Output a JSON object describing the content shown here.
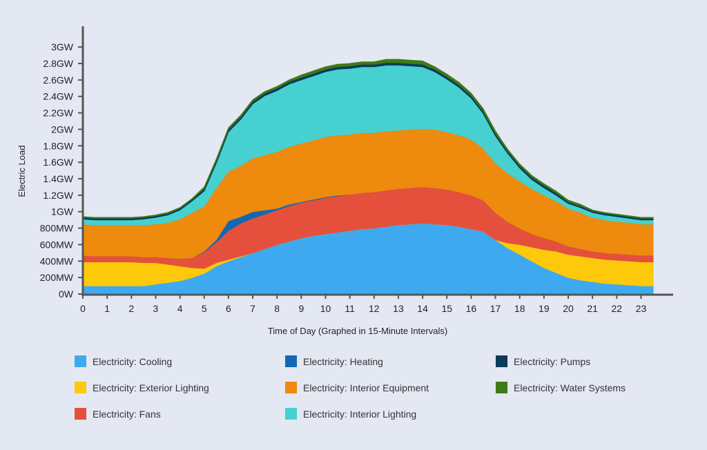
{
  "colors": {
    "background": "#e3e8f2",
    "axis": "#555555"
  },
  "chart_data": {
    "type": "area",
    "stacked": true,
    "title": "",
    "xlabel": "Time of Day (Graphed in 15-Minute Intervals)",
    "ylabel": "Electric Load",
    "x": [
      0,
      0.5,
      1,
      1.5,
      2,
      2.5,
      3,
      3.5,
      4,
      4.5,
      5,
      5.5,
      6,
      6.5,
      7,
      7.5,
      8,
      8.5,
      9,
      9.5,
      10,
      10.5,
      11,
      11.5,
      12,
      12.5,
      13,
      13.5,
      14,
      14.5,
      15,
      15.5,
      16,
      16.5,
      17,
      17.5,
      18,
      18.5,
      19,
      19.5,
      20,
      20.5,
      21,
      21.5,
      22,
      22.5,
      23,
      23.5
    ],
    "x_ticks": [
      "0",
      "1",
      "2",
      "3",
      "4",
      "5",
      "6",
      "7",
      "8",
      "9",
      "10",
      "11",
      "12",
      "13",
      "14",
      "15",
      "16",
      "17",
      "18",
      "19",
      "20",
      "21",
      "22",
      "23"
    ],
    "xlim": [
      0,
      24
    ],
    "y_ticks": [
      "0W",
      "200MW",
      "400MW",
      "600MW",
      "800MW",
      "1GW",
      "1.2GW",
      "1.4GW",
      "1.6GW",
      "1.8GW",
      "2GW",
      "2.2GW",
      "2.4GW",
      "2.6GW",
      "2.8GW",
      "3GW"
    ],
    "ylim": [
      0,
      3.0
    ],
    "y_unit": "GW",
    "grid": false,
    "legend_position": "bottom",
    "series": [
      {
        "name": "Electricity: Cooling",
        "color": "#3fa9f0",
        "values": [
          0.1,
          0.1,
          0.1,
          0.1,
          0.1,
          0.1,
          0.12,
          0.14,
          0.16,
          0.2,
          0.25,
          0.34,
          0.4,
          0.45,
          0.5,
          0.55,
          0.6,
          0.64,
          0.68,
          0.71,
          0.73,
          0.75,
          0.77,
          0.79,
          0.8,
          0.82,
          0.84,
          0.85,
          0.86,
          0.85,
          0.84,
          0.82,
          0.79,
          0.76,
          0.66,
          0.56,
          0.48,
          0.4,
          0.32,
          0.26,
          0.2,
          0.17,
          0.15,
          0.13,
          0.12,
          0.11,
          0.1,
          0.1
        ]
      },
      {
        "name": "Electricity: Exterior Lighting",
        "color": "#ffc90b",
        "values": [
          0.29,
          0.29,
          0.29,
          0.29,
          0.29,
          0.28,
          0.26,
          0.22,
          0.18,
          0.12,
          0.06,
          0.04,
          0.02,
          0.01,
          0,
          0,
          0,
          0,
          0,
          0,
          0,
          0,
          0,
          0,
          0,
          0,
          0,
          0,
          0,
          0,
          0,
          0,
          0,
          0,
          0,
          0.06,
          0.12,
          0.17,
          0.22,
          0.26,
          0.28,
          0.29,
          0.29,
          0.29,
          0.29,
          0.29,
          0.29,
          0.29
        ]
      },
      {
        "name": "Electricity: Fans",
        "color": "#e4503c",
        "values": [
          0.08,
          0.07,
          0.07,
          0.07,
          0.07,
          0.07,
          0.07,
          0.08,
          0.09,
          0.12,
          0.2,
          0.25,
          0.35,
          0.4,
          0.42,
          0.42,
          0.42,
          0.43,
          0.43,
          0.43,
          0.44,
          0.44,
          0.44,
          0.44,
          0.44,
          0.44,
          0.44,
          0.44,
          0.44,
          0.44,
          0.43,
          0.42,
          0.41,
          0.38,
          0.33,
          0.26,
          0.2,
          0.16,
          0.14,
          0.12,
          0.1,
          0.09,
          0.08,
          0.08,
          0.08,
          0.08,
          0.08,
          0.08
        ]
      },
      {
        "name": "Electricity: Heating",
        "color": "#1567b3",
        "values": [
          0,
          0,
          0,
          0,
          0,
          0,
          0,
          0,
          0,
          0,
          0.01,
          0.03,
          0.12,
          0.08,
          0.08,
          0.05,
          0.02,
          0.02,
          0.01,
          0.01,
          0.01,
          0.01,
          0,
          0,
          0,
          0,
          0,
          0,
          0,
          0,
          0,
          0,
          0,
          0,
          0,
          0,
          0,
          0,
          0,
          0,
          0,
          0,
          0,
          0,
          0,
          0,
          0,
          0
        ]
      },
      {
        "name": "Electricity: Interior Equipment",
        "color": "#ee8a0d",
        "values": [
          0.38,
          0.38,
          0.38,
          0.38,
          0.38,
          0.39,
          0.4,
          0.43,
          0.48,
          0.55,
          0.55,
          0.63,
          0.6,
          0.62,
          0.65,
          0.67,
          0.69,
          0.7,
          0.71,
          0.72,
          0.73,
          0.73,
          0.73,
          0.73,
          0.72,
          0.72,
          0.71,
          0.71,
          0.71,
          0.71,
          0.7,
          0.69,
          0.68,
          0.63,
          0.6,
          0.59,
          0.57,
          0.55,
          0.52,
          0.49,
          0.46,
          0.44,
          0.41,
          0.4,
          0.39,
          0.39,
          0.38,
          0.38
        ]
      },
      {
        "name": "Electricity: Interior Lighting",
        "color": "#46d0d0",
        "values": [
          0.06,
          0.06,
          0.06,
          0.06,
          0.06,
          0.07,
          0.08,
          0.09,
          0.11,
          0.14,
          0.18,
          0.3,
          0.48,
          0.56,
          0.66,
          0.72,
          0.74,
          0.76,
          0.77,
          0.78,
          0.79,
          0.8,
          0.8,
          0.8,
          0.8,
          0.8,
          0.79,
          0.77,
          0.75,
          0.7,
          0.64,
          0.58,
          0.5,
          0.42,
          0.33,
          0.24,
          0.16,
          0.11,
          0.09,
          0.07,
          0.06,
          0.06,
          0.06,
          0.06,
          0.06,
          0.05,
          0.05,
          0.05
        ]
      },
      {
        "name": "Electricity: Pumps",
        "color": "#0b3a5c",
        "values": [
          0.02,
          0.02,
          0.02,
          0.02,
          0.02,
          0.02,
          0.02,
          0.02,
          0.02,
          0.02,
          0.03,
          0.03,
          0.03,
          0.03,
          0.03,
          0.03,
          0.03,
          0.03,
          0.03,
          0.03,
          0.03,
          0.03,
          0.03,
          0.03,
          0.03,
          0.03,
          0.03,
          0.03,
          0.03,
          0.03,
          0.03,
          0.03,
          0.03,
          0.03,
          0.03,
          0.03,
          0.03,
          0.03,
          0.03,
          0.03,
          0.02,
          0.02,
          0.02,
          0.02,
          0.02,
          0.02,
          0.02,
          0.02
        ]
      },
      {
        "name": "Electricity: Water Systems",
        "color": "#3e7a16",
        "values": [
          0.01,
          0.01,
          0.01,
          0.01,
          0.01,
          0.01,
          0.01,
          0.01,
          0.01,
          0.01,
          0.02,
          0.02,
          0.02,
          0.02,
          0.02,
          0.02,
          0.02,
          0.02,
          0.03,
          0.03,
          0.03,
          0.03,
          0.03,
          0.03,
          0.03,
          0.04,
          0.04,
          0.04,
          0.04,
          0.03,
          0.03,
          0.03,
          0.03,
          0.03,
          0.03,
          0.02,
          0.02,
          0.02,
          0.02,
          0.02,
          0.02,
          0.02,
          0.01,
          0.01,
          0.01,
          0.01,
          0.01,
          0.01
        ]
      }
    ],
    "legend_order": [
      0,
      3,
      6,
      1,
      4,
      7,
      2,
      5
    ]
  }
}
